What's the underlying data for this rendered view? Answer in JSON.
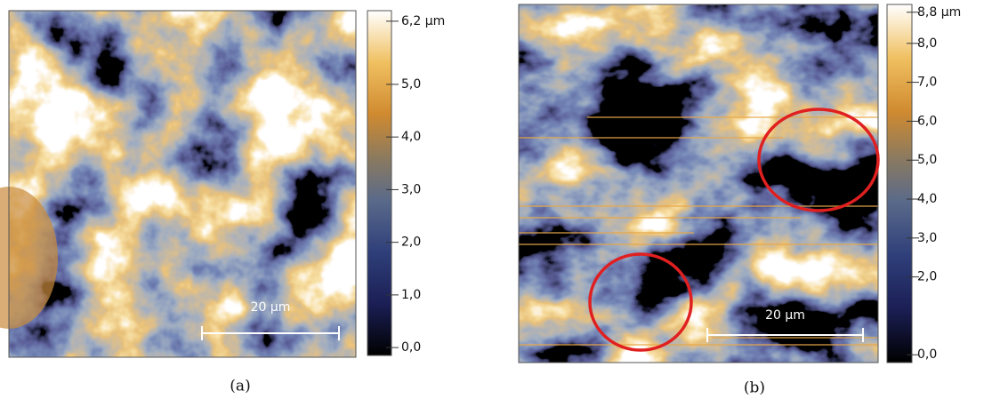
{
  "panels": [
    {
      "caption": "(a)",
      "scale_bar_label": "20 µm",
      "colorbar": {
        "range": [
          -0.15,
          6.4
        ],
        "ticks": [
          {
            "value": 6.2,
            "label": "6,2 µm"
          },
          {
            "value": 5.0,
            "label": "5,0"
          },
          {
            "value": 4.0,
            "label": "4,0"
          },
          {
            "value": 3.0,
            "label": "3,0"
          },
          {
            "value": 2.0,
            "label": "2,0"
          },
          {
            "value": 1.0,
            "label": "1,0"
          },
          {
            "value": 0.0,
            "label": "0,0"
          }
        ]
      }
    },
    {
      "caption": "(b)",
      "scale_bar_label": "20 µm",
      "colorbar": {
        "range": [
          -0.2,
          9.0
        ],
        "ticks": [
          {
            "value": 8.8,
            "label": "8,8 µm"
          },
          {
            "value": 8.0,
            "label": "8,0"
          },
          {
            "value": 7.0,
            "label": "7,0"
          },
          {
            "value": 6.0,
            "label": "6,0"
          },
          {
            "value": 5.0,
            "label": "5,0"
          },
          {
            "value": 4.0,
            "label": "4,0"
          },
          {
            "value": 3.0,
            "label": "3,0"
          },
          {
            "value": 2.0,
            "label": "2,0"
          },
          {
            "value": 0.0,
            "label": "0,0"
          }
        ]
      }
    }
  ]
}
